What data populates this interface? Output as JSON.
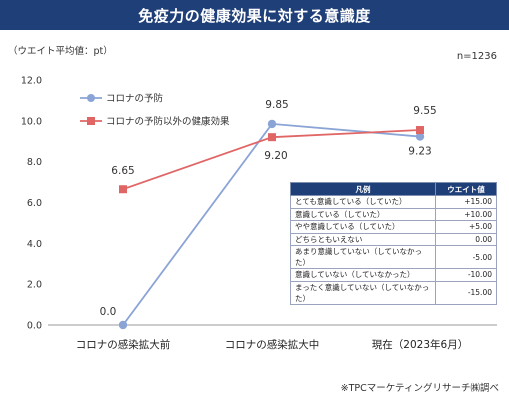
{
  "header": {
    "title": "免疫力の健康効果に対する意識度"
  },
  "unit_label": "（ウエイト平均値：pt）",
  "sample_size": "n=1236",
  "source_note": "※TPCマーケティングリサーチ㈱調べ",
  "colors": {
    "banner": "#1f3f78",
    "series_prevention": "#8aa4d6",
    "series_other": "#e06666"
  },
  "score_table": {
    "headers": {
      "label": "凡例",
      "value": "ウエイト値"
    },
    "rows": [
      {
        "label": "とても意識している（していた）",
        "value": "+15.00"
      },
      {
        "label": "意識している（していた）",
        "value": "+10.00"
      },
      {
        "label": "やや意識している（していた）",
        "value": "+5.00"
      },
      {
        "label": "どちらともいえない",
        "value": "0.00"
      },
      {
        "label": "あまり意識していない（していなかった）",
        "value": "-5.00"
      },
      {
        "label": "意識していない（していなかった）",
        "value": "-10.00"
      },
      {
        "label": "まったく意識していない（していなかった）",
        "value": "-15.00"
      }
    ]
  },
  "chart_data": {
    "type": "line",
    "categories": [
      "コロナの感染拡大前",
      "コロナの感染拡大中",
      "現在（2023年6月）"
    ],
    "series": [
      {
        "name": "コロナの予防",
        "values": [
          0.0,
          9.85,
          9.23
        ],
        "labels": [
          "0.0",
          "9.85",
          "9.23"
        ],
        "color": "#8aa4d6",
        "marker": "circle"
      },
      {
        "name": "コロナの予防以外の健康効果",
        "values": [
          6.65,
          9.2,
          9.55
        ],
        "labels": [
          "6.65",
          "9.20",
          "9.55"
        ],
        "color": "#e06666",
        "marker": "square"
      }
    ],
    "ylim": [
      0,
      12
    ],
    "yticks": [
      "0.0",
      "2.0",
      "4.0",
      "6.0",
      "8.0",
      "10.0",
      "12.0"
    ],
    "grid": false,
    "legend_position": "top-left"
  }
}
